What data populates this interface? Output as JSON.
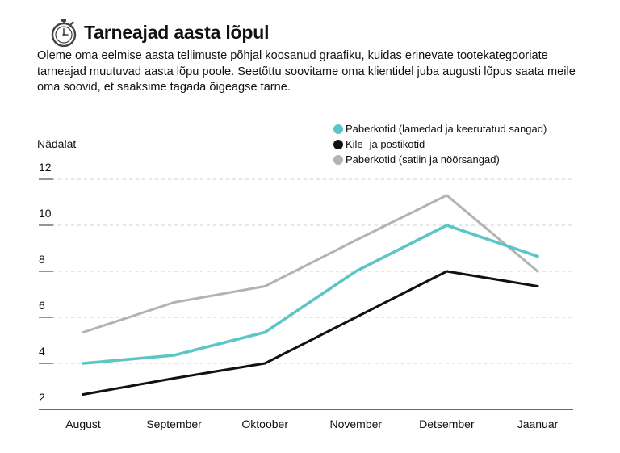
{
  "header": {
    "title": "Tarneajad aasta lõpul",
    "icon": "stopwatch-icon",
    "intro": "Oleme oma eelmise aasta tellimuste põhjal koosanud graafiku, kuidas erinevate tootekategooriate tarneajad muutuvad aasta lõpu poole. Seetõttu soovitame oma klientidel juba augusti lõpus saata meile oma soovid, et saaksime tagada õigeagse tarne."
  },
  "chart_data": {
    "type": "line",
    "title": "Tarneajad aasta lõpul",
    "ylabel": "Nädalat",
    "xlabel": "",
    "categories": [
      "August",
      "September",
      "Oktoober",
      "November",
      "Detsember",
      "Jaanuar"
    ],
    "y_ticks": [
      "2",
      "4",
      "6",
      "8",
      "10",
      "12"
    ],
    "ylim": [
      2,
      12
    ],
    "grid": "horizontal dashed",
    "legend_position": "top-right",
    "series": [
      {
        "name": "Paberkotid (lamedad ja keerutatud sangad)",
        "color": "#5bc6c5",
        "values": [
          4,
          4.35,
          5.35,
          8,
          10,
          8.65
        ]
      },
      {
        "name": "Kile- ja postikotid",
        "color": "#111111",
        "values": [
          2.65,
          3.35,
          4,
          6,
          8,
          7.35
        ]
      },
      {
        "name": "Paberkotid (satiin ja nöörsangad)",
        "color": "#b3b3b3",
        "values": [
          5.35,
          6.65,
          7.35,
          9.35,
          11.3,
          8
        ]
      }
    ]
  }
}
